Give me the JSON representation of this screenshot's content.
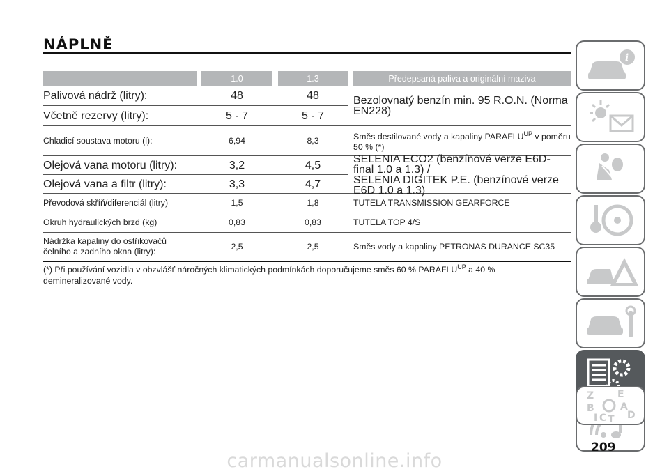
{
  "page": {
    "title": "NÁPLNĚ",
    "page_number": "209",
    "watermark": "carmanualsonline.info"
  },
  "table": {
    "headers": [
      "",
      "1.0",
      "1.3",
      "Předepsaná paliva a originální maziva"
    ],
    "rows": [
      {
        "label": "Palivová nádrž (litry):",
        "v10": "48",
        "v13": "48"
      },
      {
        "label": "Včetně rezervy (litry):",
        "v10": "5 - 7",
        "v13": "5 - 7"
      },
      {
        "label": "Chladicí soustava motoru (l):",
        "v10": "6,94",
        "v13": "8,3"
      },
      {
        "label": "Olejová vana motoru (litry):",
        "v10": "3,2",
        "v13": "4,5"
      },
      {
        "label": "Olejová vana a filtr (litry):",
        "v10": "3,3",
        "v13": "4,7"
      },
      {
        "label": "Převodová skříň/diferenciál (litry)",
        "v10": "1,5",
        "v13": "1,8"
      },
      {
        "label": "Okruh hydraulických brzd (kg)",
        "v10": "0,83",
        "v13": "0,83"
      },
      {
        "label_line1": "Nádržka kapaliny do ostřikovačů",
        "label_line2": "čelního a zadního okna (litry):",
        "v10": "2,5",
        "v13": "2,5"
      }
    ],
    "fluids": {
      "fuel": "Bezolovnatý benzín min. 95 R.O.N. (Norma EN228)",
      "coolant_a": "Směs destilované vody a kapaliny PARAFLU",
      "coolant_sup": "UP",
      "coolant_b": " v poměru",
      "coolant_c": "50 % (*)",
      "oil_line1": "SELENIA ECO2 (benzínové verze E6D-final 1.0 a 1.3) /",
      "oil_line2": "SELENIA DIGITEK P.E. (benzínové verze E6D 1.0 a 1.3)",
      "transmission": "TUTELA TRANSMISSION GEARFORCE",
      "brake": "TUTELA TOP 4/S",
      "washer": "Směs vody a kapaliny PETRONAS DURANCE SC35"
    }
  },
  "footnote": {
    "part_a": "(*) Při používání vozidla v obzvlášť náročných klimatických podmínkách doporučujeme směs 60 % PARAFLU",
    "sup": "UP",
    "part_b": " a 40 % demineralizované vody."
  },
  "nav_tabs": [
    {
      "icon": "car-info-icon",
      "active": false
    },
    {
      "icon": "lights-envelope-icon",
      "active": false
    },
    {
      "icon": "airbag-seat-icon",
      "active": false
    },
    {
      "icon": "key-steering-wheel-icon",
      "active": false
    },
    {
      "icon": "car-warning-triangle-icon",
      "active": false
    },
    {
      "icon": "car-wrench-icon",
      "active": false
    },
    {
      "icon": "specs-gears-icon",
      "active": true
    },
    {
      "icon": "radio-music-icon",
      "active": false
    },
    {
      "icon": "alphabet-index-icon",
      "active": false
    }
  ],
  "colors": {
    "header_bg": "#b4b6b8",
    "nav_active": "#55595c",
    "nav_border": "#6a6c6e"
  }
}
